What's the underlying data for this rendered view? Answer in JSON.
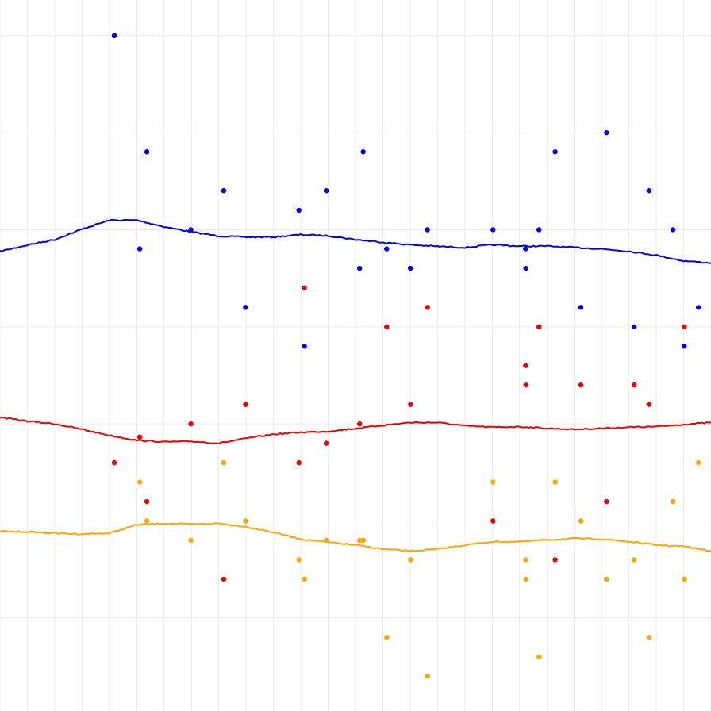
{
  "chart_data": {
    "type": "scatter",
    "title": "",
    "xlabel": "",
    "ylabel": "",
    "grid": true,
    "xlim": [
      0,
      26
    ],
    "ylim": [
      0,
      26
    ],
    "x_gridlines": [
      0,
      1,
      2,
      3,
      4,
      5,
      6,
      7,
      8,
      9,
      10,
      11,
      12,
      13,
      14,
      15,
      16,
      17,
      18,
      19,
      20,
      21,
      22,
      23,
      24,
      25,
      26
    ],
    "y_gridlines": [
      3.4,
      6.95,
      10.5,
      14.05,
      17.6,
      21.15,
      24.7
    ],
    "series": [
      {
        "color": "#0000ee",
        "points": [
          [
            4.18,
            24.7
          ],
          [
            5.37,
            20.45
          ],
          [
            5.11,
            16.9
          ],
          [
            6.98,
            17.6
          ],
          [
            8.18,
            19.03
          ],
          [
            8.98,
            14.76
          ],
          [
            10.93,
            18.31
          ],
          [
            11.13,
            13.34
          ],
          [
            11.93,
            19.03
          ],
          [
            13.15,
            16.19
          ],
          [
            13.28,
            20.45
          ],
          [
            14.14,
            16.9
          ],
          [
            15.01,
            16.19
          ],
          [
            15.63,
            17.6
          ],
          [
            18.03,
            17.6
          ],
          [
            19.22,
            16.9
          ],
          [
            19.23,
            16.19
          ],
          [
            19.71,
            17.6
          ],
          [
            20.3,
            20.45
          ],
          [
            21.24,
            14.76
          ],
          [
            22.18,
            21.15
          ],
          [
            23.19,
            14.05
          ],
          [
            23.73,
            19.03
          ],
          [
            24.61,
            17.6
          ],
          [
            25.02,
            13.34
          ],
          [
            25.54,
            14.76
          ]
        ],
        "trend": [
          [
            0,
            16.81
          ],
          [
            1.0,
            17.04
          ],
          [
            2.0,
            17.24
          ],
          [
            3.0,
            17.62
          ],
          [
            4.0,
            17.95
          ],
          [
            5.0,
            17.95
          ],
          [
            6.0,
            17.71
          ],
          [
            7.0,
            17.52
          ],
          [
            8.0,
            17.37
          ],
          [
            9.0,
            17.33
          ],
          [
            10.0,
            17.33
          ],
          [
            11.0,
            17.42
          ],
          [
            12.0,
            17.38
          ],
          [
            13.0,
            17.24
          ],
          [
            14.0,
            17.14
          ],
          [
            15.0,
            17.05
          ],
          [
            16.0,
            16.99
          ],
          [
            17.0,
            16.95
          ],
          [
            18.0,
            17.05
          ],
          [
            19.0,
            17.0
          ],
          [
            20.0,
            17.0
          ],
          [
            21.0,
            16.95
          ],
          [
            22.0,
            16.9
          ],
          [
            23.0,
            16.81
          ],
          [
            24.0,
            16.67
          ],
          [
            25.0,
            16.46
          ],
          [
            26.0,
            16.38
          ]
        ]
      },
      {
        "color": "#ee0000",
        "points": [
          [
            4.18,
            9.08
          ],
          [
            5.11,
            10.02
          ],
          [
            5.37,
            7.66
          ],
          [
            6.98,
            10.5
          ],
          [
            8.18,
            4.82
          ],
          [
            8.98,
            11.21
          ],
          [
            10.93,
            9.08
          ],
          [
            11.13,
            15.47
          ],
          [
            11.93,
            9.79
          ],
          [
            13.15,
            10.5
          ],
          [
            13.28,
            6.24
          ],
          [
            14.14,
            14.05
          ],
          [
            15.01,
            11.21
          ],
          [
            15.63,
            14.76
          ],
          [
            18.03,
            6.95
          ],
          [
            19.22,
            12.63
          ],
          [
            19.23,
            11.92
          ],
          [
            19.71,
            14.05
          ],
          [
            20.3,
            5.53
          ],
          [
            21.24,
            11.92
          ],
          [
            22.18,
            7.66
          ],
          [
            23.19,
            11.92
          ],
          [
            23.73,
            11.21
          ],
          [
            24.61,
            7.66
          ],
          [
            25.02,
            14.05
          ]
        ],
        "trend": [
          [
            0,
            10.74
          ],
          [
            1.0,
            10.6
          ],
          [
            2.0,
            10.5
          ],
          [
            3.0,
            10.3
          ],
          [
            4.0,
            10.08
          ],
          [
            5.0,
            9.9
          ],
          [
            6.0,
            9.84
          ],
          [
            7.0,
            9.86
          ],
          [
            8.0,
            9.79
          ],
          [
            9.0,
            9.97
          ],
          [
            10.0,
            10.12
          ],
          [
            11.0,
            10.19
          ],
          [
            12.0,
            10.23
          ],
          [
            13.0,
            10.33
          ],
          [
            14.0,
            10.45
          ],
          [
            15.0,
            10.55
          ],
          [
            16.0,
            10.55
          ],
          [
            17.0,
            10.43
          ],
          [
            18.0,
            10.38
          ],
          [
            19.0,
            10.4
          ],
          [
            20.0,
            10.34
          ],
          [
            21.0,
            10.3
          ],
          [
            22.0,
            10.34
          ],
          [
            23.0,
            10.38
          ],
          [
            24.0,
            10.4
          ],
          [
            25.0,
            10.48
          ],
          [
            26.0,
            10.55
          ]
        ]
      },
      {
        "color": "#ffa500",
        "points": [
          [
            5.11,
            8.37
          ],
          [
            5.37,
            6.95
          ],
          [
            6.98,
            6.24
          ],
          [
            8.18,
            9.08
          ],
          [
            8.98,
            6.95
          ],
          [
            10.93,
            5.53
          ],
          [
            11.13,
            4.82
          ],
          [
            11.93,
            6.24
          ],
          [
            13.15,
            6.24
          ],
          [
            13.28,
            6.24
          ],
          [
            14.14,
            2.69
          ],
          [
            15.01,
            5.53
          ],
          [
            15.63,
            1.27
          ],
          [
            18.03,
            8.37
          ],
          [
            19.22,
            5.53
          ],
          [
            19.23,
            4.82
          ],
          [
            19.71,
            1.98
          ],
          [
            20.3,
            8.37
          ],
          [
            21.24,
            6.95
          ],
          [
            22.18,
            4.82
          ],
          [
            23.19,
            5.53
          ],
          [
            23.73,
            2.69
          ],
          [
            24.61,
            7.66
          ],
          [
            25.02,
            4.82
          ],
          [
            25.54,
            9.08
          ]
        ],
        "trend": [
          [
            0,
            6.57
          ],
          [
            1.0,
            6.55
          ],
          [
            2.0,
            6.5
          ],
          [
            3.0,
            6.47
          ],
          [
            4.0,
            6.5
          ],
          [
            5.0,
            6.81
          ],
          [
            6.0,
            6.86
          ],
          [
            7.0,
            6.83
          ],
          [
            8.0,
            6.86
          ],
          [
            9.0,
            6.74
          ],
          [
            10.0,
            6.53
          ],
          [
            11.0,
            6.29
          ],
          [
            12.0,
            6.17
          ],
          [
            13.0,
            6.07
          ],
          [
            14.0,
            5.92
          ],
          [
            15.0,
            5.85
          ],
          [
            16.0,
            5.92
          ],
          [
            17.0,
            6.07
          ],
          [
            18.0,
            6.19
          ],
          [
            19.0,
            6.19
          ],
          [
            20.0,
            6.26
          ],
          [
            21.0,
            6.31
          ],
          [
            22.0,
            6.29
          ],
          [
            23.0,
            6.19
          ],
          [
            24.0,
            6.07
          ],
          [
            25.0,
            6.02
          ],
          [
            26.0,
            5.85
          ]
        ]
      }
    ]
  }
}
